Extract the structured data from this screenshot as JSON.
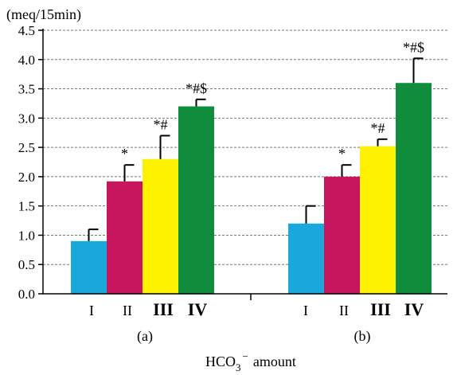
{
  "chart_data": {
    "type": "bar",
    "unit_label": "(meq/15min)",
    "xlabel": {
      "main": "HCO",
      "sub": "3",
      "sup": "−",
      "rest": "amount"
    },
    "ylim": [
      0,
      4.5
    ],
    "yticks": [
      "0.0",
      "0.5",
      "1.0",
      "1.5",
      "2.0",
      "2.5",
      "3.0",
      "3.5",
      "4.0",
      "4.5"
    ],
    "grid": "horizontal dashed",
    "categories": [
      "I",
      "II",
      "III",
      "IV"
    ],
    "colors": [
      "#1aa7dc",
      "#c8165e",
      "#fff200",
      "#0f8c3c"
    ],
    "groups": [
      {
        "label": "(a)",
        "values": [
          0.9,
          1.92,
          2.3,
          3.2
        ],
        "errors": [
          0.2,
          0.28,
          0.4,
          0.12
        ],
        "annotations": [
          "",
          "*",
          "*#",
          "*#$"
        ]
      },
      {
        "label": "(b)",
        "values": [
          1.2,
          2.0,
          2.52,
          3.6
        ],
        "errors": [
          0.3,
          0.2,
          0.12,
          0.42
        ],
        "annotations": [
          "",
          "*",
          "*#",
          "*#$"
        ]
      }
    ]
  }
}
